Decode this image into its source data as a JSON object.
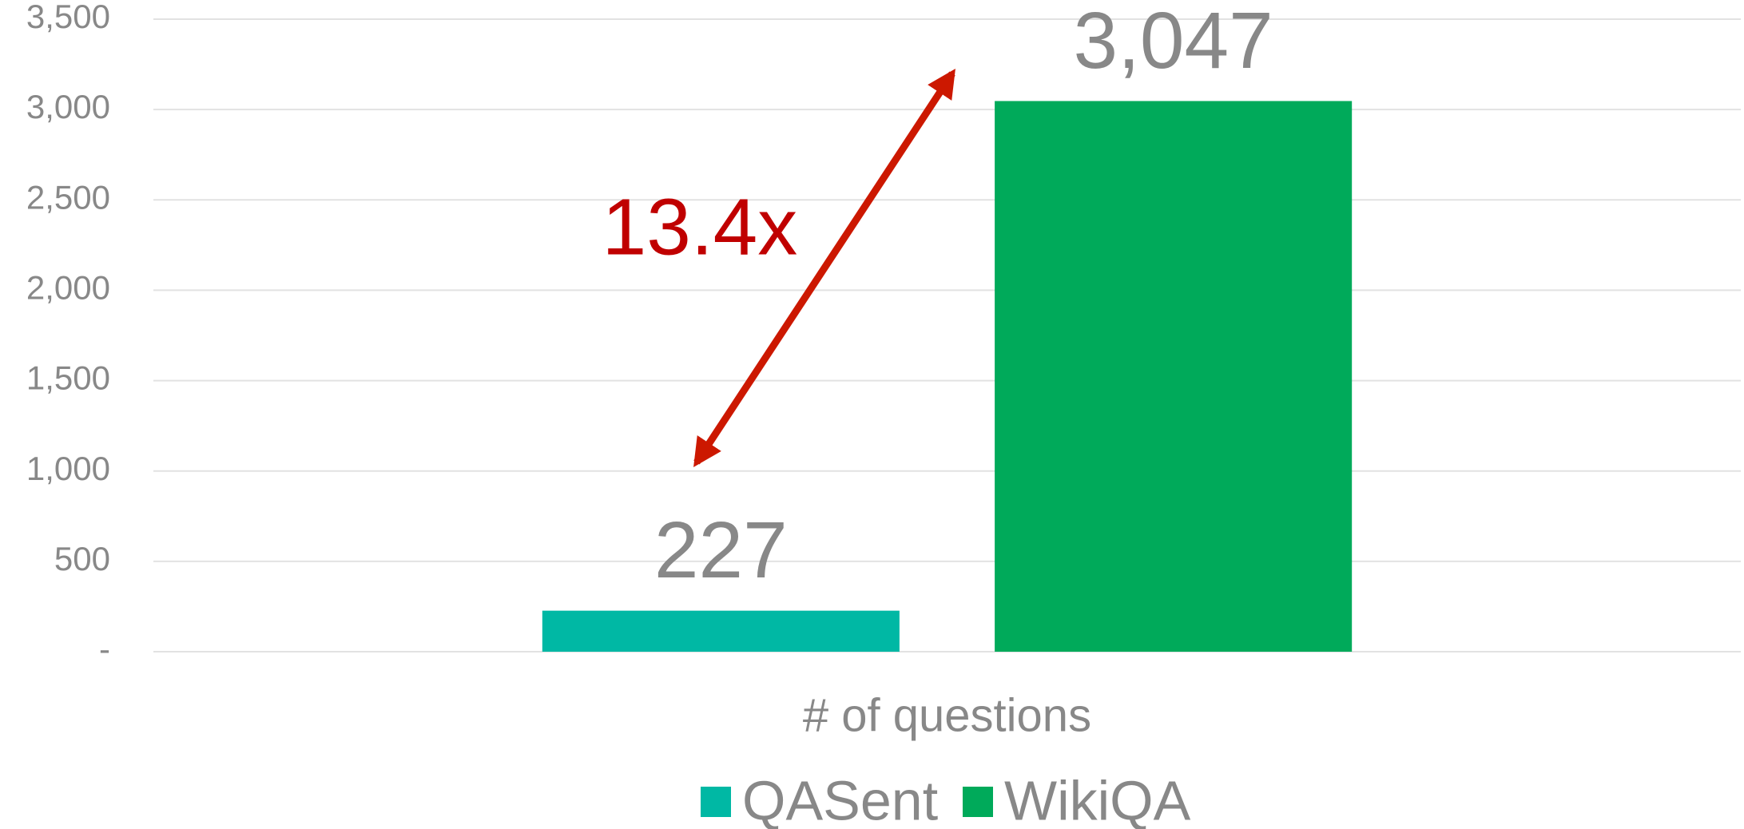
{
  "chart_data": {
    "type": "bar",
    "categories": [
      "# of questions"
    ],
    "series": [
      {
        "name": "QASent",
        "color": "#00b8a4",
        "values": [
          227
        ]
      },
      {
        "name": "WikiQA",
        "color": "#00aa5a",
        "values": [
          3047
        ],
        "value_labels": [
          "3,047"
        ]
      }
    ],
    "ylim": [
      0,
      3500
    ],
    "yticks": [
      {
        "value": 0,
        "label": "-"
      },
      500,
      {
        "value": 1000,
        "label": "1,000"
      },
      {
        "value": 1500,
        "label": "1,500"
      },
      {
        "value": 2000,
        "label": "2,000"
      },
      {
        "value": 2500,
        "label": "2,500"
      },
      {
        "value": 3000,
        "label": "3,000"
      },
      {
        "value": 3500,
        "label": "3,500"
      }
    ],
    "grid": true,
    "legend": "bottom",
    "annotation": "13.4x"
  }
}
